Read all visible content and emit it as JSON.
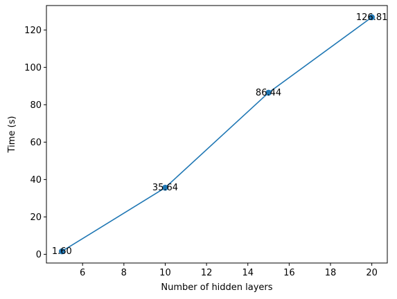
{
  "chart_data": {
    "type": "line",
    "title": "",
    "xlabel": "Number of hidden layers",
    "ylabel": "Time (s)",
    "xlim": [
      4.25,
      20.75
    ],
    "ylim": [
      -4.66,
      133.07
    ],
    "xticks": [
      6,
      8,
      10,
      12,
      14,
      16,
      18,
      20
    ],
    "yticks": [
      0,
      20,
      40,
      60,
      80,
      100,
      120
    ],
    "grid": false,
    "series": [
      {
        "x": [
          5,
          10,
          15,
          20
        ],
        "y": [
          1.6,
          35.64,
          86.44,
          126.81
        ],
        "labels": [
          "1.60",
          "35.64",
          "86.44",
          "126.81"
        ],
        "color": "#1f77b4",
        "marker": "circle"
      }
    ]
  }
}
